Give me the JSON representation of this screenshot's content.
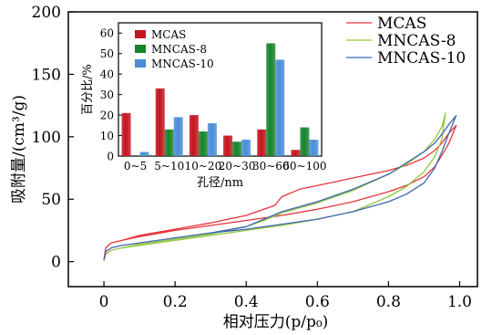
{
  "chart_data": [
    {
      "type": "line",
      "xlabel": "相对压力(p/p₀)",
      "ylabel": "吸附量/(cm³/g)",
      "xlim": [
        -0.1,
        1.05
      ],
      "ylim": [
        -20,
        200
      ],
      "xticks": [
        0,
        0.2,
        0.4,
        0.6,
        0.8,
        1.0
      ],
      "xtick_labels": [
        "0",
        "0.2",
        "0.4",
        "0.6",
        "0.8",
        "1.0"
      ],
      "yticks": [
        0,
        50,
        100,
        150,
        200
      ],
      "ytick_labels": [
        "0",
        "50",
        "100",
        "150",
        "200"
      ],
      "grid": false,
      "legend_position": "top-right",
      "series": [
        {
          "name": "MCAS",
          "color": "#e8323c",
          "adsorption": [
            [
              0.0,
              1
            ],
            [
              0.005,
              11
            ],
            [
              0.02,
              15
            ],
            [
              0.05,
              17
            ],
            [
              0.1,
              20
            ],
            [
              0.2,
              25
            ],
            [
              0.3,
              29
            ],
            [
              0.4,
              33
            ],
            [
              0.5,
              37
            ],
            [
              0.6,
              42
            ],
            [
              0.7,
              48
            ],
            [
              0.8,
              56
            ],
            [
              0.85,
              61
            ],
            [
              0.9,
              68
            ],
            [
              0.93,
              76
            ],
            [
              0.95,
              85
            ],
            [
              0.97,
              95
            ],
            [
              0.99,
              109
            ]
          ],
          "desorption": [
            [
              0.99,
              109
            ],
            [
              0.97,
              103
            ],
            [
              0.95,
              95
            ],
            [
              0.93,
              89
            ],
            [
              0.9,
              83
            ],
            [
              0.85,
              77
            ],
            [
              0.8,
              73
            ],
            [
              0.7,
              67
            ],
            [
              0.6,
              61
            ],
            [
              0.55,
              58
            ],
            [
              0.5,
              52
            ],
            [
              0.48,
              45
            ],
            [
              0.43,
              40
            ],
            [
              0.4,
              37
            ],
            [
              0.3,
              31
            ],
            [
              0.2,
              26
            ],
            [
              0.1,
              21
            ],
            [
              0.05,
              17
            ]
          ]
        },
        {
          "name": "MNCAS-8",
          "color": "#92c83e",
          "adsorption": [
            [
              0.0,
              1
            ],
            [
              0.005,
              6
            ],
            [
              0.02,
              9
            ],
            [
              0.05,
              11
            ],
            [
              0.1,
              13
            ],
            [
              0.2,
              17
            ],
            [
              0.3,
              21
            ],
            [
              0.4,
              25
            ],
            [
              0.5,
              29
            ],
            [
              0.6,
              34
            ],
            [
              0.7,
              40
            ],
            [
              0.8,
              52
            ],
            [
              0.85,
              60
            ],
            [
              0.9,
              72
            ],
            [
              0.93,
              84
            ],
            [
              0.95,
              98
            ],
            [
              0.96,
              119
            ]
          ],
          "desorption": [
            [
              0.96,
              119
            ],
            [
              0.95,
              108
            ],
            [
              0.93,
              98
            ],
            [
              0.9,
              88
            ],
            [
              0.85,
              78
            ],
            [
              0.8,
              70
            ],
            [
              0.7,
              57
            ],
            [
              0.6,
              47
            ],
            [
              0.5,
              39
            ],
            [
              0.45,
              33
            ],
            [
              0.4,
              28
            ],
            [
              0.3,
              22
            ],
            [
              0.2,
              18
            ],
            [
              0.1,
              14
            ],
            [
              0.05,
              11
            ]
          ]
        },
        {
          "name": "MNCAS-10",
          "color": "#3f67b2",
          "adsorption": [
            [
              0.0,
              1
            ],
            [
              0.005,
              8
            ],
            [
              0.02,
              11
            ],
            [
              0.05,
              13
            ],
            [
              0.1,
              15
            ],
            [
              0.2,
              19
            ],
            [
              0.3,
              23
            ],
            [
              0.4,
              26
            ],
            [
              0.5,
              30
            ],
            [
              0.6,
              34
            ],
            [
              0.7,
              40
            ],
            [
              0.8,
              48
            ],
            [
              0.85,
              54
            ],
            [
              0.9,
              63
            ],
            [
              0.93,
              75
            ],
            [
              0.95,
              88
            ],
            [
              0.97,
              103
            ],
            [
              0.99,
              117
            ]
          ],
          "desorption": [
            [
              0.99,
              117
            ],
            [
              0.97,
              110
            ],
            [
              0.95,
              102
            ],
            [
              0.93,
              95
            ],
            [
              0.9,
              88
            ],
            [
              0.85,
              79
            ],
            [
              0.8,
              70
            ],
            [
              0.7,
              58
            ],
            [
              0.6,
              48
            ],
            [
              0.5,
              40
            ],
            [
              0.45,
              34
            ],
            [
              0.4,
              28
            ],
            [
              0.3,
              23
            ],
            [
              0.2,
              19
            ],
            [
              0.1,
              15
            ],
            [
              0.05,
              13
            ]
          ]
        }
      ]
    },
    {
      "type": "bar",
      "xlabel": "孔径/nm",
      "ylabel": "百分比/%",
      "ylim": [
        0,
        65
      ],
      "yticks": [
        0,
        10,
        20,
        30,
        40,
        50,
        60
      ],
      "ytick_labels": [
        "0",
        "10",
        "20",
        "30",
        "40",
        "50",
        "60"
      ],
      "grid": false,
      "legend_position": "top-left",
      "categories": [
        "0~5",
        "5~10",
        "10~20",
        "20~30",
        "30~60",
        "60~100"
      ],
      "series": [
        {
          "name": "MCAS",
          "color": "#c4141e",
          "values": [
            21,
            33,
            20,
            10,
            13,
            3
          ]
        },
        {
          "name": "MNCAS-8",
          "color": "#17832b",
          "values": [
            0,
            13,
            12,
            7,
            55,
            14
          ]
        },
        {
          "name": "MNCAS-10",
          "color": "#4a8dd6",
          "values": [
            2,
            19,
            16,
            8,
            47,
            8
          ]
        }
      ]
    }
  ]
}
